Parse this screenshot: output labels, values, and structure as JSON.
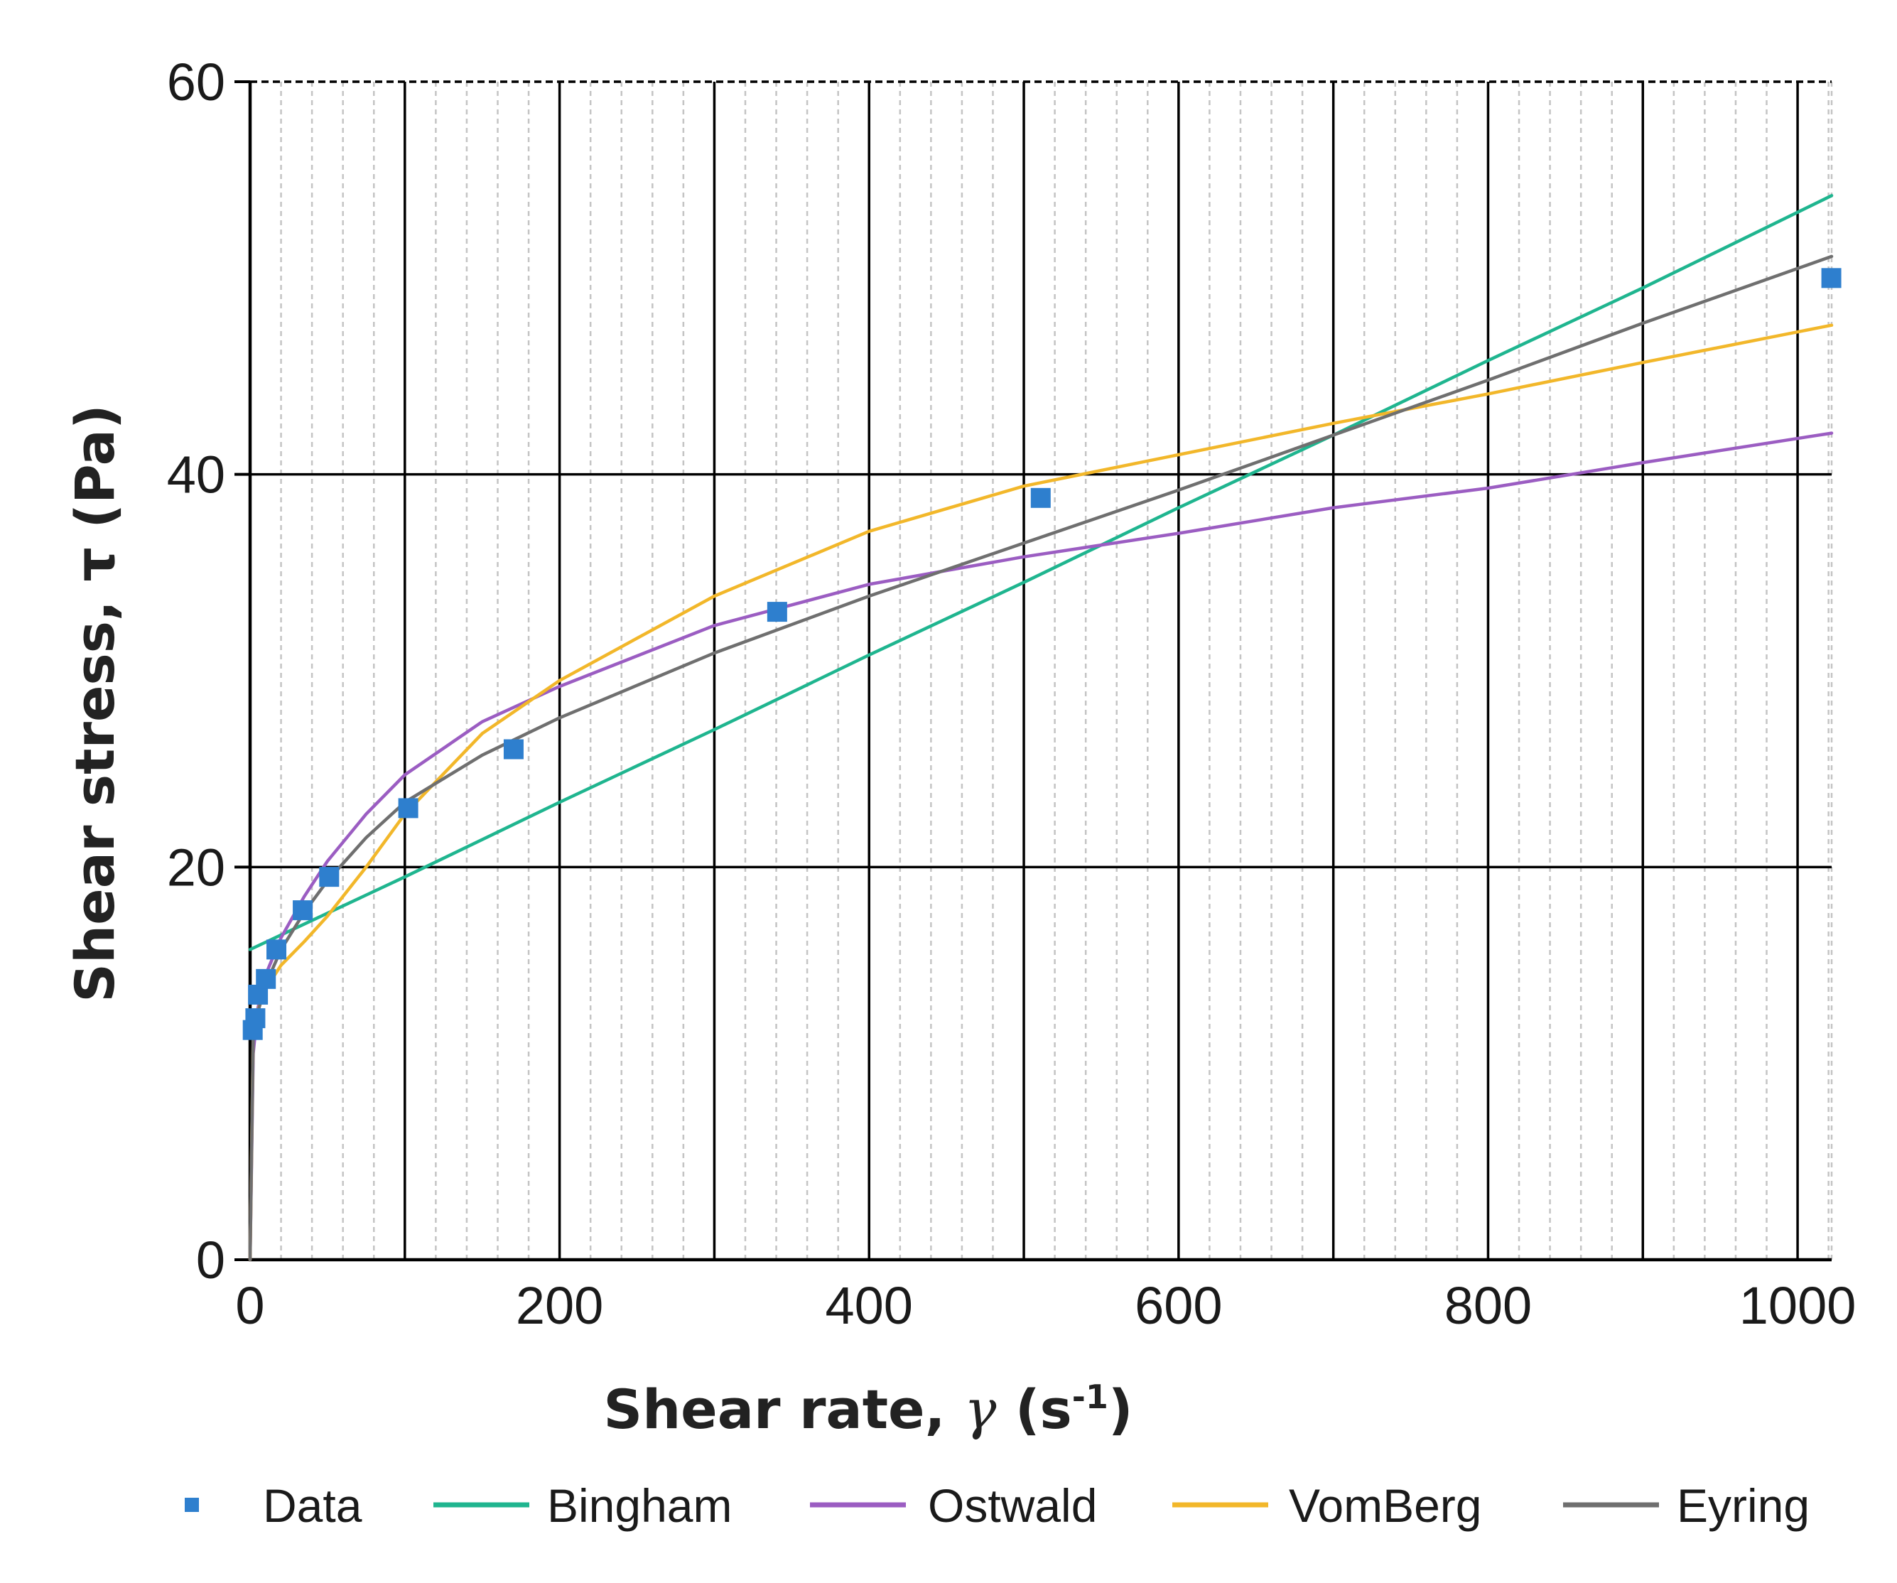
{
  "chart_data": {
    "type": "line",
    "title": "",
    "xlabel": "Shear rate, γ̇ (s⁻¹)",
    "xlabel_parts": {
      "main": "Shear rate, ",
      "symbol": "γ",
      "unit_open": " (s",
      "unit_exp": "-1",
      "unit_close": ")"
    },
    "ylabel": "Shear stress, τ (Pa)",
    "xlim": [
      0,
      1022
    ],
    "ylim": [
      0,
      60
    ],
    "xticks": [
      0,
      200,
      400,
      600,
      800,
      1000
    ],
    "xtick_labels": [
      "0",
      "200",
      "400",
      "600",
      "800",
      "1000"
    ],
    "yticks": [
      0,
      20,
      40,
      60
    ],
    "ytick_labels": [
      "0",
      "20",
      "40",
      "60"
    ],
    "x_major_grid": [
      0,
      100,
      200,
      300,
      400,
      500,
      600,
      700,
      800,
      900,
      1000
    ],
    "x_minor_grid_step": 20,
    "y_major_grid": [
      20,
      40
    ],
    "legend_position": "bottom",
    "series": [
      {
        "name": "Data",
        "kind": "points",
        "color": "#2e7fce",
        "x": [
          1.7,
          3.4,
          5.1,
          10.2,
          17.0,
          34.0,
          51.1,
          102.2,
          170.3,
          340.6,
          510.9,
          1021.8
        ],
        "y": [
          11.7,
          12.3,
          13.5,
          14.3,
          15.8,
          17.8,
          19.5,
          23.0,
          26.0,
          33.0,
          38.8,
          50.0
        ]
      },
      {
        "name": "Bingham",
        "kind": "line",
        "color": "#1fb58f",
        "x": [
          0,
          100,
          200,
          300,
          400,
          500,
          600,
          700,
          800,
          900,
          1022
        ],
        "y": [
          15.8,
          19.5,
          23.3,
          27.0,
          30.8,
          34.5,
          38.3,
          42.0,
          45.8,
          49.5,
          54.2
        ]
      },
      {
        "name": "Ostwald",
        "kind": "line",
        "color": "#9b5dc2",
        "x": [
          0,
          2,
          5,
          10,
          20,
          35,
          50,
          75,
          100,
          150,
          200,
          300,
          400,
          500,
          600,
          700,
          800,
          900,
          1022
        ],
        "y": [
          0,
          10.5,
          12.8,
          14.5,
          16.4,
          18.5,
          20.3,
          22.7,
          24.7,
          27.4,
          29.2,
          32.3,
          34.4,
          35.8,
          37.0,
          38.3,
          39.3,
          40.6,
          42.1
        ]
      },
      {
        "name": "VomBerg",
        "kind": "line",
        "color": "#f2b72a",
        "x": [
          0,
          2,
          5,
          10,
          20,
          35,
          50,
          75,
          100,
          150,
          200,
          300,
          400,
          500,
          600,
          700,
          800,
          900,
          1022
        ],
        "y": [
          0,
          11.5,
          12.7,
          13.8,
          15.0,
          16.2,
          17.5,
          20.0,
          22.7,
          26.8,
          29.5,
          33.8,
          37.1,
          39.4,
          41.0,
          42.6,
          44.1,
          45.7,
          47.6
        ]
      },
      {
        "name": "Eyring",
        "kind": "line",
        "color": "#6f6f6f",
        "x": [
          0,
          2,
          5,
          10,
          20,
          35,
          50,
          75,
          100,
          150,
          200,
          300,
          400,
          500,
          600,
          700,
          800,
          900,
          1022
        ],
        "y": [
          0,
          11.3,
          12.6,
          14.0,
          15.8,
          17.7,
          19.3,
          21.5,
          23.3,
          25.7,
          27.6,
          30.9,
          33.8,
          36.5,
          39.2,
          42.0,
          44.8,
          47.7,
          51.1
        ]
      }
    ]
  }
}
